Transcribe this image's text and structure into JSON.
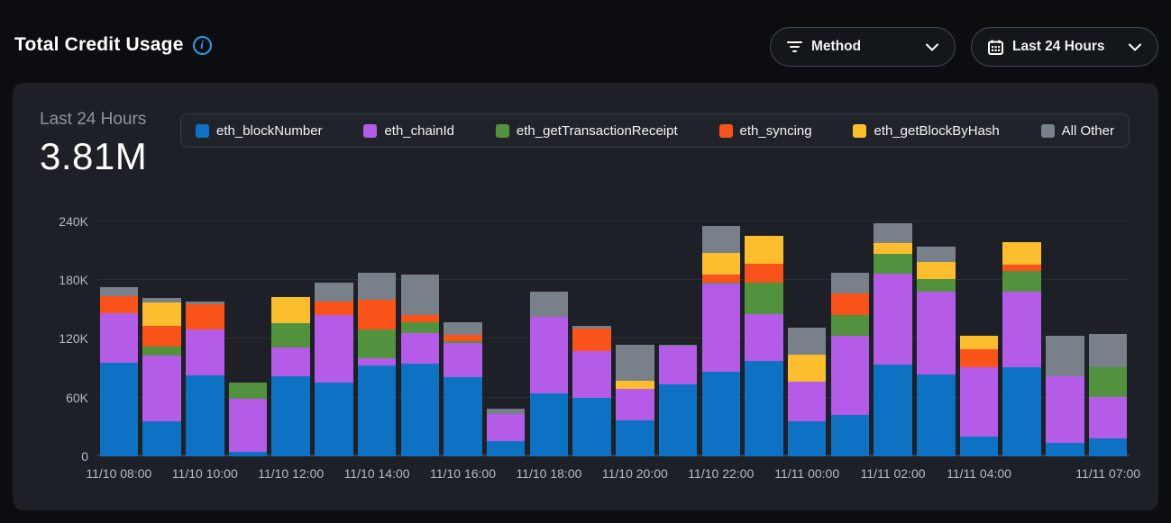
{
  "header": {
    "title": "Total Credit Usage"
  },
  "filters": {
    "method": {
      "label": "Method"
    },
    "time_range": {
      "label": "Last 24 Hours"
    }
  },
  "summary": {
    "period_label": "Last 24 Hours",
    "total": "3.81M"
  },
  "chart_data": {
    "type": "bar",
    "variant": "stacked",
    "title": "Total Credit Usage",
    "subtitle": "Last 24 Hours",
    "values_in": "thousands",
    "ylim": [
      0,
      240000
    ],
    "yticks": [
      {
        "value": 0,
        "label": "0"
      },
      {
        "value": 60,
        "label": "60K"
      },
      {
        "value": 120,
        "label": "120K"
      },
      {
        "value": 180,
        "label": "180K"
      },
      {
        "value": 240,
        "label": "240K"
      }
    ],
    "categories": [
      "11/10 08:00",
      "11/10 09:00",
      "11/10 10:00",
      "11/10 11:00",
      "11/10 12:00",
      "11/10 13:00",
      "11/10 14:00",
      "11/10 15:00",
      "11/10 16:00",
      "11/10 17:00",
      "11/10 18:00",
      "11/10 19:00",
      "11/10 20:00",
      "11/10 21:00",
      "11/10 22:00",
      "11/10 23:00",
      "11/11 00:00",
      "11/11 01:00",
      "11/11 02:00",
      "11/11 03:00",
      "11/11 04:00",
      "11/11 05:00",
      "11/11 06:00",
      "11/11 07:00"
    ],
    "visible_ticks": [
      {
        "index": 0,
        "label": "11/10 08:00"
      },
      {
        "index": 2,
        "label": "11/10 10:00"
      },
      {
        "index": 4,
        "label": "11/10 12:00"
      },
      {
        "index": 6,
        "label": "11/10 14:00"
      },
      {
        "index": 8,
        "label": "11/10 16:00"
      },
      {
        "index": 10,
        "label": "11/10 18:00"
      },
      {
        "index": 12,
        "label": "11/10 20:00"
      },
      {
        "index": 14,
        "label": "11/10 22:00"
      },
      {
        "index": 16,
        "label": "11/11 00:00"
      },
      {
        "index": 18,
        "label": "11/11 02:00"
      },
      {
        "index": 20,
        "label": "11/11 04:00"
      },
      {
        "index": 23,
        "label": "11/11 07:00"
      }
    ],
    "series": [
      {
        "name": "eth_blockNumber",
        "color": "#0d72c4",
        "values": [
          96,
          36,
          83,
          5,
          82,
          75,
          93,
          95,
          81,
          16,
          64,
          60,
          37,
          74,
          86,
          97,
          36,
          42,
          94,
          84,
          20,
          91,
          14,
          18
        ]
      },
      {
        "name": "eth_chainId",
        "color": "#b45ce8",
        "values": [
          50,
          67,
          47,
          54,
          29,
          69,
          7,
          31,
          35,
          27,
          78,
          48,
          32,
          39,
          90,
          48,
          40,
          81,
          93,
          84,
          71,
          77,
          68,
          43
        ]
      },
      {
        "name": "eth_getTransactionReceipt",
        "color": "#52913e",
        "values": [
          0,
          9,
          0,
          16,
          25,
          0,
          30,
          11,
          2,
          0,
          0,
          0,
          0,
          1,
          1,
          32,
          0,
          21,
          20,
          13,
          0,
          21,
          0,
          30
        ]
      },
      {
        "name": "eth_syncing",
        "color": "#f95319",
        "values": [
          18,
          21,
          25,
          0,
          0,
          14,
          30,
          7,
          6,
          0,
          0,
          23,
          0,
          0,
          9,
          20,
          0,
          22,
          0,
          0,
          18,
          7,
          0,
          0
        ]
      },
      {
        "name": "eth_getBlockByHash",
        "color": "#fcbe2d",
        "values": [
          0,
          24,
          0,
          0,
          27,
          0,
          0,
          0,
          0,
          0,
          0,
          0,
          8,
          0,
          22,
          28,
          28,
          0,
          11,
          18,
          14,
          23,
          0,
          0
        ]
      },
      {
        "name": "All Other",
        "color": "#788089",
        "values": [
          8.5,
          5,
          3,
          0,
          0,
          19,
          28,
          42,
          13,
          6,
          26,
          2,
          37,
          0,
          27,
          0,
          27,
          21,
          20,
          15,
          0,
          0,
          41,
          34
        ]
      }
    ],
    "legend_position": "top",
    "grid": "horizontal"
  }
}
